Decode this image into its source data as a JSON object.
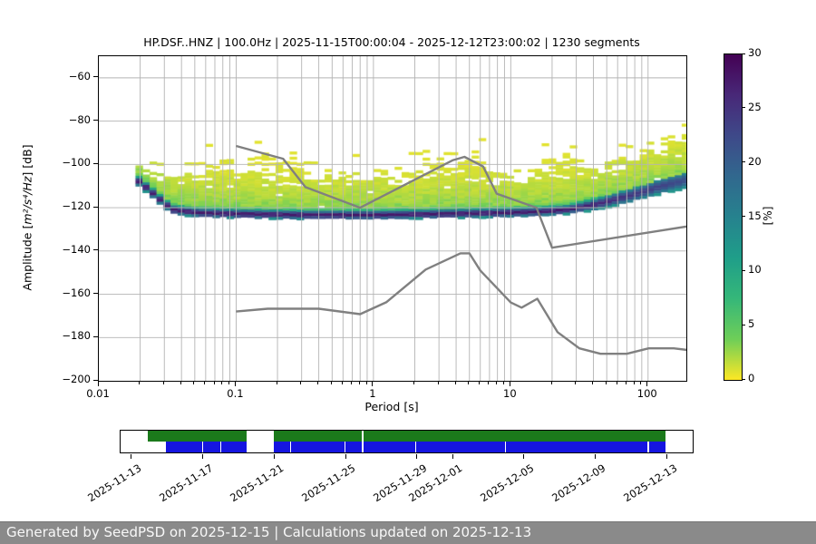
{
  "footer": "Generated by SeedPSD on 2025-12-15 | Calculations updated on 2025-12-13",
  "chart_data": {
    "type": "heatmap",
    "title": "HP.DSF..HNZ | 100.0Hz | 2025-11-15T00:00:04 - 2025-12-12T23:00:02 | 1230 segments",
    "xlabel": "Period [s]",
    "ylabel_prefix": "Amplitude [",
    "ylabel_math": "m²/s⁴/Hz",
    "ylabel_suffix": "] [dB]",
    "xscale": "log",
    "xlim": [
      0.01,
      190
    ],
    "ylim": [
      -200,
      -50
    ],
    "grid": true,
    "grid_color": "#b4b4b4",
    "xticks": [
      {
        "v": 0.01,
        "label": "0.01"
      },
      {
        "v": 0.1,
        "label": "0.1"
      },
      {
        "v": 1,
        "label": "1"
      },
      {
        "v": 10,
        "label": "10"
      },
      {
        "v": 100,
        "label": "100"
      }
    ],
    "yticks": [
      {
        "v": -60,
        "label": "−60"
      },
      {
        "v": -80,
        "label": "−80"
      },
      {
        "v": -100,
        "label": "−100"
      },
      {
        "v": -120,
        "label": "−120"
      },
      {
        "v": -140,
        "label": "−140"
      },
      {
        "v": -160,
        "label": "−160"
      },
      {
        "v": -180,
        "label": "−180"
      },
      {
        "v": -200,
        "label": "−200"
      }
    ],
    "colorbar": {
      "label": "[%]",
      "min": 0,
      "max": 30,
      "ticks": [
        0,
        5,
        10,
        15,
        20,
        25,
        30
      ],
      "colormap": "viridis_r",
      "stops": [
        "#440154",
        "#482878",
        "#3e4989",
        "#31688e",
        "#26828e",
        "#1f9e89",
        "#35b779",
        "#6ece58",
        "#fde725"
      ]
    },
    "ppsd": {
      "period_range": [
        0.0185,
        190
      ],
      "max_percent": 30,
      "mode_curve": [
        [
          0.0185,
          -108
        ],
        [
          0.022,
          -112
        ],
        [
          0.027,
          -117
        ],
        [
          0.032,
          -121
        ],
        [
          0.05,
          -122.5
        ],
        [
          0.1,
          -123
        ],
        [
          0.3,
          -123.5
        ],
        [
          1,
          -123.5
        ],
        [
          3,
          -123
        ],
        [
          8,
          -122.5
        ],
        [
          15,
          -122
        ],
        [
          25,
          -121
        ],
        [
          40,
          -118.5
        ],
        [
          70,
          -114.5
        ],
        [
          120,
          -110
        ],
        [
          190,
          -107
        ]
      ],
      "upper_envelope": [
        [
          0.0185,
          -101
        ],
        [
          0.025,
          -100
        ],
        [
          0.04,
          -96
        ],
        [
          0.07,
          -91
        ],
        [
          0.13,
          -88.5
        ],
        [
          0.25,
          -92
        ],
        [
          0.5,
          -95
        ],
        [
          1,
          -97.5
        ],
        [
          2,
          -96
        ],
        [
          3.5,
          -89
        ],
        [
          5,
          -87
        ],
        [
          7,
          -93
        ],
        [
          10,
          -100
        ],
        [
          13,
          -97
        ],
        [
          18,
          -90
        ],
        [
          27,
          -85
        ],
        [
          45,
          -96
        ],
        [
          70,
          -92
        ],
        [
          100,
          -86
        ],
        [
          140,
          -79
        ],
        [
          190,
          -75.5
        ]
      ]
    },
    "noise_models": {
      "color": "#808080",
      "nhnm": [
        [
          0.1,
          -91.5
        ],
        [
          0.22,
          -97.4
        ],
        [
          0.32,
          -110.5
        ],
        [
          0.8,
          -120.0
        ],
        [
          3.8,
          -98.0
        ],
        [
          4.6,
          -96.5
        ],
        [
          6.3,
          -101.0
        ],
        [
          7.9,
          -113.5
        ],
        [
          15.4,
          -120.0
        ],
        [
          20.0,
          -138.5
        ],
        [
          354.8,
          -126.0
        ]
      ],
      "nlnm": [
        [
          0.1,
          -168.0
        ],
        [
          0.17,
          -166.7
        ],
        [
          0.4,
          -166.7
        ],
        [
          0.8,
          -169.2
        ],
        [
          1.24,
          -163.7
        ],
        [
          2.4,
          -148.6
        ],
        [
          4.3,
          -141.1
        ],
        [
          5.0,
          -141.1
        ],
        [
          6.0,
          -149.0
        ],
        [
          10.0,
          -163.8
        ],
        [
          12.0,
          -166.2
        ],
        [
          15.6,
          -162.1
        ],
        [
          21.9,
          -177.5
        ],
        [
          31.6,
          -185.0
        ],
        [
          45.0,
          -187.5
        ],
        [
          70.0,
          -187.5
        ],
        [
          101.0,
          -185.0
        ],
        [
          154.0,
          -185.0
        ],
        [
          328.0,
          -187.5
        ]
      ]
    },
    "timeline": {
      "axis_days": [
        -0.6,
        31.45
      ],
      "green_color": "#1b7a1b",
      "blue_color": "#1515e0",
      "ticks": [
        {
          "day": 0,
          "label": "2025-11-13"
        },
        {
          "day": 4,
          "label": "2025-11-17"
        },
        {
          "day": 8,
          "label": "2025-11-21"
        },
        {
          "day": 12,
          "label": "2025-11-25"
        },
        {
          "day": 16,
          "label": "2025-11-29"
        },
        {
          "day": 18,
          "label": "2025-12-01"
        },
        {
          "day": 22,
          "label": "2025-12-05"
        },
        {
          "day": 26,
          "label": "2025-12-09"
        },
        {
          "day": 30,
          "label": "2025-12-13"
        }
      ],
      "green_segments": [
        [
          0.91,
          6.44
        ],
        [
          7.97,
          12.89
        ],
        [
          12.99,
          29.93
        ]
      ],
      "blue_segments": [
        [
          1.93,
          3.96
        ],
        [
          4.01,
          4.97
        ],
        [
          5.02,
          6.44
        ],
        [
          7.97,
          8.88
        ],
        [
          8.93,
          11.97
        ],
        [
          12.02,
          12.89
        ],
        [
          12.99,
          15.93
        ],
        [
          15.98,
          20.95
        ],
        [
          21.0,
          28.92
        ],
        [
          29.02,
          29.93
        ]
      ]
    }
  }
}
